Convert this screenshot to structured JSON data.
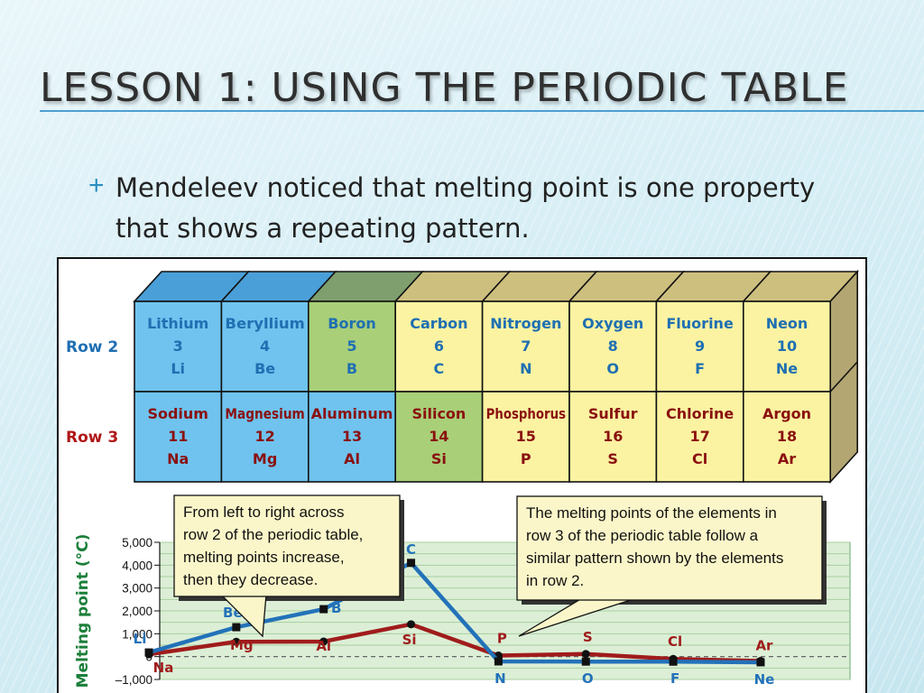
{
  "slide": {
    "title": "Lesson 1: Using the periodic table",
    "bullet_marker": "+",
    "bullet_text": "Mendeleev noticed that melting point is one property that shows a repeating pattern."
  },
  "table": {
    "rows": [
      {
        "label": "Row 2",
        "cells": [
          {
            "name": "Lithium",
            "number": "3",
            "symbol": "Li",
            "color": "#6fc3ee"
          },
          {
            "name": "Beryllium",
            "number": "4",
            "symbol": "Be",
            "color": "#6fc3ee"
          },
          {
            "name": "Boron",
            "number": "5",
            "symbol": "B",
            "color": "#a9cf78"
          },
          {
            "name": "Carbon",
            "number": "6",
            "symbol": "C",
            "color": "#fbf3a2"
          },
          {
            "name": "Nitrogen",
            "number": "7",
            "symbol": "N",
            "color": "#fbf3a2"
          },
          {
            "name": "Oxygen",
            "number": "8",
            "symbol": "O",
            "color": "#fbf3a2"
          },
          {
            "name": "Fluorine",
            "number": "9",
            "symbol": "F",
            "color": "#fbf3a2"
          },
          {
            "name": "Neon",
            "number": "10",
            "symbol": "Ne",
            "color": "#fbf3a2"
          }
        ]
      },
      {
        "label": "Row 3",
        "cells": [
          {
            "name": "Sodium",
            "number": "11",
            "symbol": "Na",
            "color": "#6fc3ee"
          },
          {
            "name": "Magnesium",
            "number": "12",
            "symbol": "Mg",
            "color": "#6fc3ee"
          },
          {
            "name": "Aluminum",
            "number": "13",
            "symbol": "Al",
            "color": "#6fc3ee"
          },
          {
            "name": "Silicon",
            "number": "14",
            "symbol": "Si",
            "color": "#a9cf78"
          },
          {
            "name": "Phosphorus",
            "number": "15",
            "symbol": "P",
            "color": "#fbf3a2"
          },
          {
            "name": "Sulfur",
            "number": "16",
            "symbol": "S",
            "color": "#fbf3a2"
          },
          {
            "name": "Chlorine",
            "number": "17",
            "symbol": "Cl",
            "color": "#fbf3a2"
          },
          {
            "name": "Argon",
            "number": "18",
            "symbol": "Ar",
            "color": "#fbf3a2"
          }
        ]
      }
    ],
    "colors": {
      "row2_name_text": "#1f6fb2",
      "row3_name_text": "#8a1010",
      "row_label_row2": "#1f6fb2",
      "row_label_row3": "#b01818",
      "top_face_blue": "#4a9fd8",
      "top_face_green": "#7f9f6e",
      "top_face_tan": "#cdbf7e",
      "side_face": "#b4a672"
    }
  },
  "callouts": {
    "left": "From left to right across row 2 of the periodic table, melting points increase, then they decrease.",
    "right": "The melting points of the elements in row 3 of the periodic table follow a similar pattern shown by the elements in row 2."
  },
  "chart_data": {
    "type": "line",
    "ylabel": "Melting point (°C)",
    "ylim": [
      -1000,
      5000
    ],
    "yticks": [
      "5,000",
      "4,000",
      "3,000",
      "2,000",
      "1,000",
      "0",
      "–1,000"
    ],
    "grid": true,
    "zero_line": "dashed",
    "series": [
      {
        "labels": [
          "Li",
          "Be",
          "B",
          "C",
          "N",
          "O",
          "F",
          "Ne"
        ],
        "values": [
          181,
          1287,
          2076,
          4100,
          -210,
          -218,
          -220,
          -249
        ],
        "color": "#2372b9"
      },
      {
        "labels": [
          "Na",
          "Mg",
          "Al",
          "Si",
          "P",
          "S",
          "Cl",
          "Ar"
        ],
        "values": [
          98,
          650,
          660,
          1414,
          44,
          115,
          -101,
          -189
        ],
        "color": "#a01c1c"
      }
    ],
    "colors": {
      "plot_bg": "#dcefd6",
      "grid": "#a8cfa0",
      "ylabel": "#1b7f3a"
    }
  }
}
